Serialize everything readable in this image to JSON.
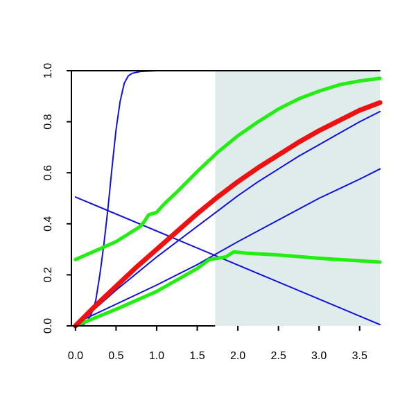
{
  "chart_data": {
    "type": "line",
    "title": "",
    "xlabel": "",
    "ylabel": "",
    "xlim": [
      -0.05,
      3.75
    ],
    "ylim": [
      0,
      1
    ],
    "x_ticks": [
      0.0,
      0.5,
      1.0,
      1.5,
      2.0,
      2.5,
      3.0,
      3.5
    ],
    "x_tick_labels": [
      "0.0",
      "0.5",
      "1.0",
      "1.5",
      "2.0",
      "2.5",
      "3.0",
      "3.5"
    ],
    "y_ticks": [
      0.0,
      0.2,
      0.4,
      0.6,
      0.8,
      1.0
    ],
    "y_tick_labels": [
      "0.0",
      "0.2",
      "0.4",
      "0.6",
      "0.8",
      "1.0"
    ],
    "grid": false,
    "legend": "none",
    "shaded_region": {
      "x_from": 1.72,
      "x_to": 3.75,
      "color": "#e0ecec"
    },
    "series": [
      {
        "color": "#1010dd",
        "width": "thin",
        "points": [
          [
            0.0,
            0.0
          ],
          [
            0.1,
            0.005
          ],
          [
            0.15,
            0.02
          ],
          [
            0.2,
            0.05
          ],
          [
            0.25,
            0.1
          ],
          [
            0.3,
            0.2
          ],
          [
            0.35,
            0.32
          ],
          [
            0.4,
            0.46
          ],
          [
            0.45,
            0.62
          ],
          [
            0.5,
            0.77
          ],
          [
            0.55,
            0.88
          ],
          [
            0.6,
            0.95
          ],
          [
            0.65,
            0.98
          ],
          [
            0.7,
            0.99
          ],
          [
            0.8,
            0.997
          ],
          [
            1.0,
            1.0
          ],
          [
            3.75,
            1.0
          ]
        ]
      },
      {
        "color": "#1010dd",
        "width": "thin",
        "points": [
          [
            0.0,
            0.505
          ],
          [
            3.75,
            0.005
          ]
        ]
      },
      {
        "color": "#1010dd",
        "width": "thin",
        "points": [
          [
            0.0,
            0.0
          ],
          [
            0.25,
            0.07
          ],
          [
            0.5,
            0.14
          ],
          [
            0.75,
            0.205
          ],
          [
            1.0,
            0.27
          ],
          [
            1.25,
            0.33
          ],
          [
            1.5,
            0.39
          ],
          [
            1.75,
            0.45
          ],
          [
            2.0,
            0.51
          ],
          [
            2.25,
            0.565
          ],
          [
            2.5,
            0.615
          ],
          [
            2.75,
            0.665
          ],
          [
            3.0,
            0.71
          ],
          [
            3.25,
            0.755
          ],
          [
            3.5,
            0.8
          ],
          [
            3.75,
            0.84
          ]
        ]
      },
      {
        "color": "#1010dd",
        "width": "thin",
        "points": [
          [
            0.0,
            0.01
          ],
          [
            0.5,
            0.085
          ],
          [
            1.0,
            0.16
          ],
          [
            1.5,
            0.24
          ],
          [
            1.72,
            0.28
          ],
          [
            2.0,
            0.33
          ],
          [
            2.5,
            0.415
          ],
          [
            3.0,
            0.5
          ],
          [
            3.5,
            0.575
          ],
          [
            3.75,
            0.615
          ]
        ]
      },
      {
        "color": "#22ee11",
        "width": "thick",
        "points": [
          [
            0.0,
            0.26
          ],
          [
            0.5,
            0.33
          ],
          [
            0.8,
            0.39
          ],
          [
            0.85,
            0.41
          ],
          [
            0.9,
            0.435
          ],
          [
            0.95,
            0.44
          ],
          [
            1.0,
            0.445
          ],
          [
            1.1,
            0.48
          ],
          [
            1.25,
            0.525
          ],
          [
            1.5,
            0.605
          ],
          [
            1.75,
            0.68
          ],
          [
            2.0,
            0.745
          ],
          [
            2.25,
            0.8
          ],
          [
            2.5,
            0.85
          ],
          [
            2.75,
            0.89
          ],
          [
            3.0,
            0.92
          ],
          [
            3.25,
            0.945
          ],
          [
            3.5,
            0.96
          ],
          [
            3.75,
            0.97
          ]
        ]
      },
      {
        "color": "#22ee11",
        "width": "thick",
        "points": [
          [
            0.0,
            0.0
          ],
          [
            0.5,
            0.065
          ],
          [
            1.0,
            0.135
          ],
          [
            1.5,
            0.225
          ],
          [
            1.65,
            0.26
          ],
          [
            1.75,
            0.265
          ],
          [
            1.85,
            0.27
          ],
          [
            1.95,
            0.29
          ],
          [
            2.1,
            0.285
          ],
          [
            2.5,
            0.278
          ],
          [
            3.0,
            0.265
          ],
          [
            3.5,
            0.255
          ],
          [
            3.75,
            0.25
          ]
        ]
      },
      {
        "color": "#ee1111",
        "width": "thickest",
        "points": [
          [
            0.0,
            0.0
          ],
          [
            0.25,
            0.08
          ],
          [
            0.5,
            0.155
          ],
          [
            0.75,
            0.23
          ],
          [
            1.0,
            0.3
          ],
          [
            1.25,
            0.37
          ],
          [
            1.5,
            0.44
          ],
          [
            1.75,
            0.505
          ],
          [
            2.0,
            0.565
          ],
          [
            2.25,
            0.62
          ],
          [
            2.5,
            0.67
          ],
          [
            2.75,
            0.72
          ],
          [
            3.0,
            0.765
          ],
          [
            3.25,
            0.805
          ],
          [
            3.5,
            0.845
          ],
          [
            3.75,
            0.875
          ]
        ]
      }
    ]
  }
}
